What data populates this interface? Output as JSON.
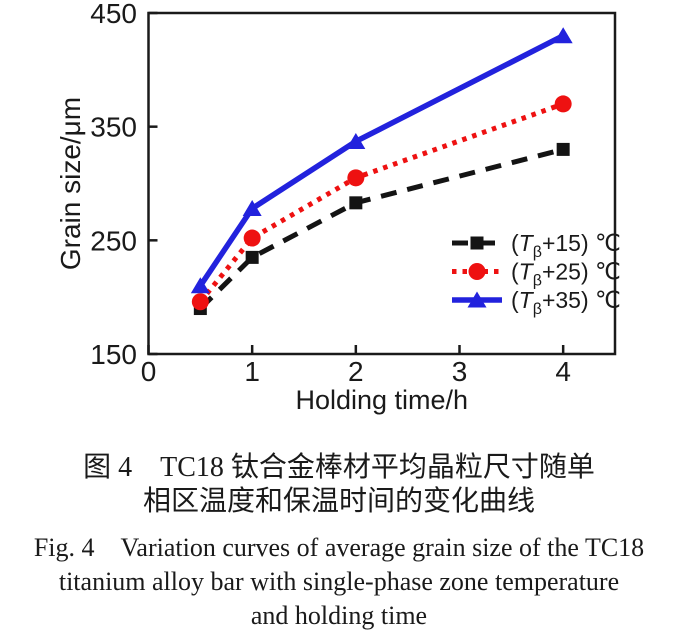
{
  "chart_data": {
    "type": "line",
    "xlabel": "Holding time/h",
    "ylabel": "Grain size/μm",
    "x": [
      0.5,
      1,
      2,
      4
    ],
    "xlim": [
      0,
      4.5
    ],
    "ylim": [
      150,
      450
    ],
    "xticks": [
      0,
      1,
      2,
      3,
      4
    ],
    "yticks": [
      150,
      250,
      350,
      450
    ],
    "grid": false,
    "legend_position": "inside-lower-right",
    "axis_color": "#1a1a1a",
    "series": [
      {
        "name": "(Tβ+15) ℃",
        "label_parts": {
          "pre": "(",
          "italic": "T",
          "sub": "β",
          "post": "+15) ℃"
        },
        "values": [
          190,
          235,
          283,
          330
        ],
        "color": "#141414",
        "line": "dashed",
        "marker": "square"
      },
      {
        "name": "(Tβ+25) ℃",
        "label_parts": {
          "pre": "(",
          "italic": "T",
          "sub": "β",
          "post": "+25) ℃"
        },
        "values": [
          196,
          252,
          305,
          370
        ],
        "color": "#ee1111",
        "line": "dotted",
        "marker": "circle"
      },
      {
        "name": "(Tβ+35) ℃",
        "label_parts": {
          "pre": "(",
          "italic": "T",
          "sub": "β",
          "post": "+35) ℃"
        },
        "values": [
          210,
          278,
          337,
          430
        ],
        "color": "#2222dd",
        "line": "solid",
        "marker": "triangle-up"
      }
    ],
    "captions": {
      "zh": [
        "图 4　TC18 钛合金棒材平均晶粒尺寸随单",
        "相区温度和保温时间的变化曲线"
      ],
      "en": [
        "Fig. 4　Variation curves of average grain size of the TC18",
        "titanium alloy bar with single-phase zone temperature",
        "and holding time"
      ]
    }
  }
}
